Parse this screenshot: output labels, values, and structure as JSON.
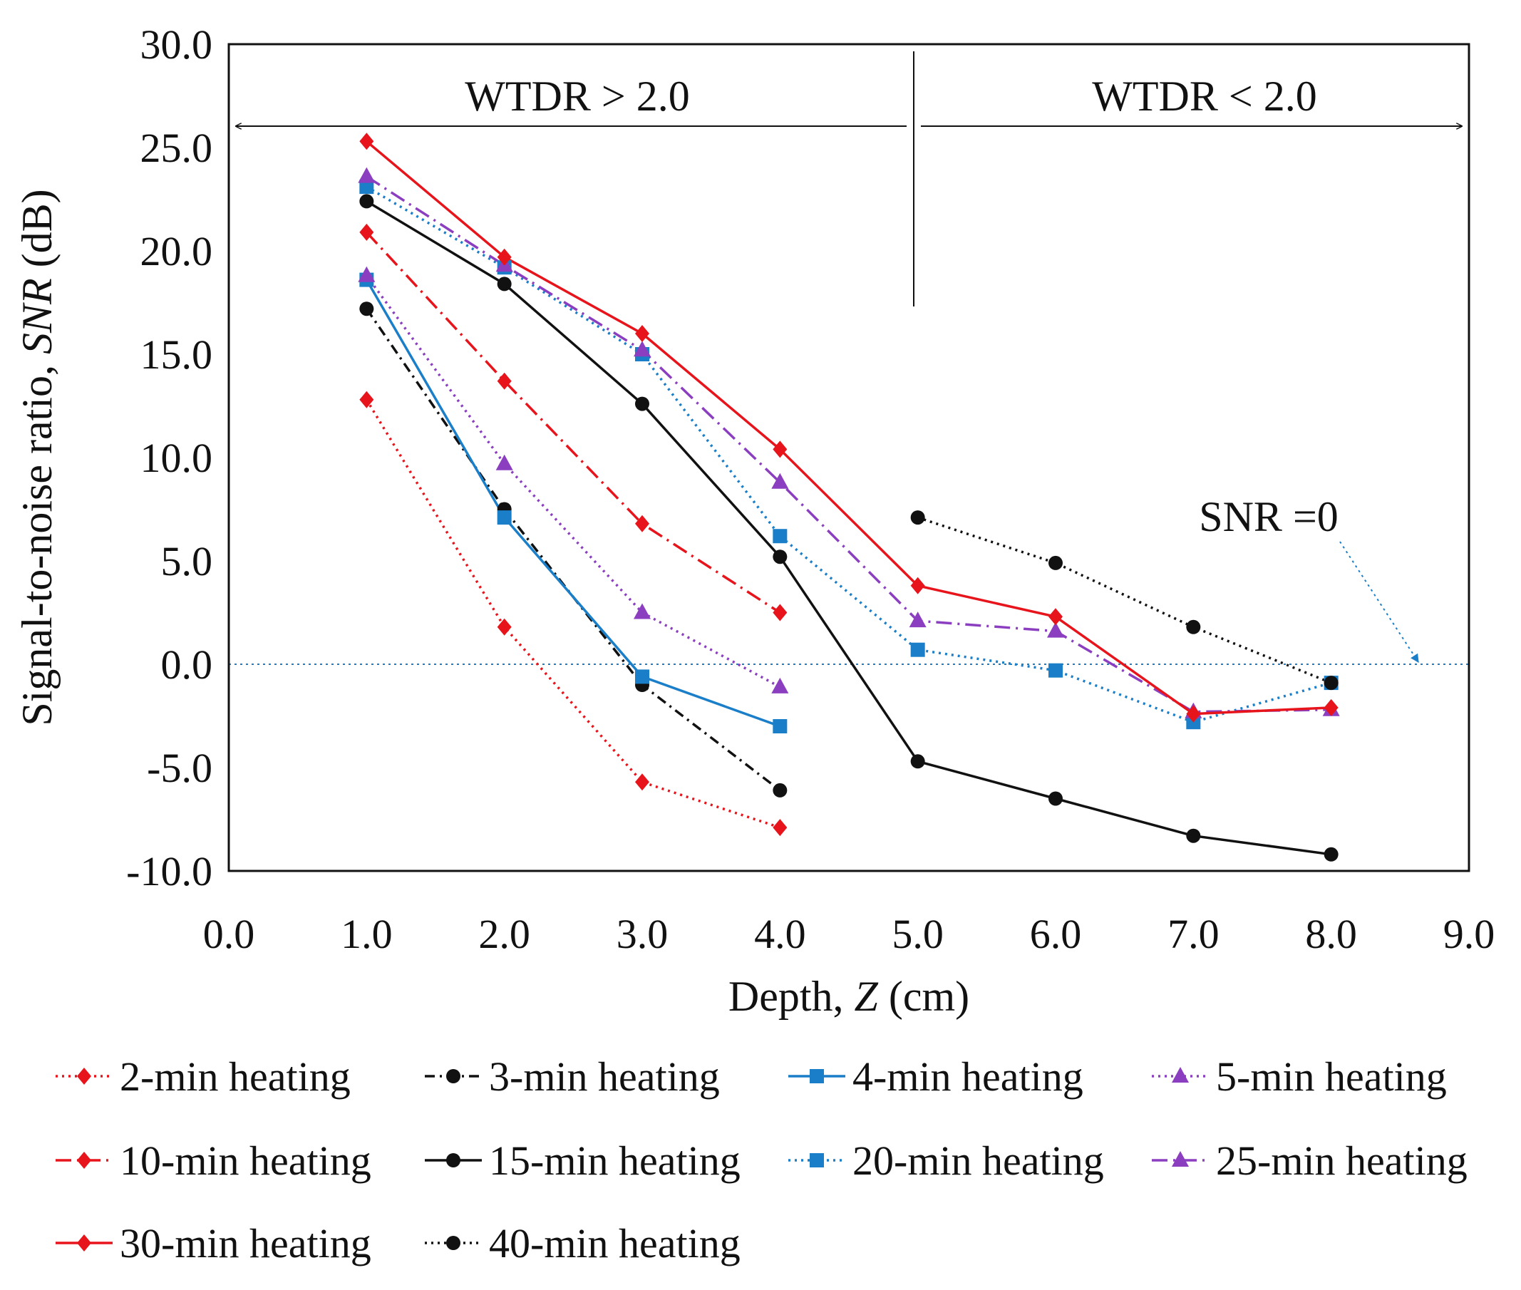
{
  "chart_data": {
    "type": "line",
    "xlabel_prefix": "Depth, ",
    "xlabel_var": "Z",
    "xlabel_suffix": " (cm)",
    "ylabel_prefix": "Signal-to-noise ratio, ",
    "ylabel_var": "SNR",
    "ylabel_suffix": " (dB)",
    "xlim": [
      0,
      9
    ],
    "ylim": [
      -10,
      30
    ],
    "x_ticks": [
      "0.0",
      "1.0",
      "2.0",
      "3.0",
      "4.0",
      "5.0",
      "6.0",
      "7.0",
      "8.0",
      "9.0"
    ],
    "y_ticks": [
      "-10.0",
      "-5.0",
      "0.0",
      "5.0",
      "10.0",
      "15.0",
      "20.0",
      "25.0",
      "30.0"
    ],
    "annotations": {
      "region_left": "WTDR > 2.0",
      "region_right": "WTDR < 2.0",
      "zero_line": "SNR =0"
    },
    "series": [
      {
        "name": "2-min heating",
        "color": "#e8141b",
        "dash": "3,6",
        "marker": "diamond",
        "x": [
          1,
          2,
          3,
          4
        ],
        "y": [
          12.8,
          1.8,
          -5.7,
          -7.9
        ]
      },
      {
        "name": "3-min heating",
        "color": "#111111",
        "dash": "14,7,3,7",
        "marker": "circle",
        "x": [
          1,
          2,
          3,
          4
        ],
        "y": [
          17.2,
          7.5,
          -1.0,
          -6.1
        ]
      },
      {
        "name": "4-min heating",
        "color": "#1a7fc8",
        "dash": "",
        "marker": "square",
        "x": [
          1,
          2,
          3,
          4
        ],
        "y": [
          18.6,
          7.1,
          -0.6,
          -3.0
        ]
      },
      {
        "name": "5-min heating",
        "color": "#8b3fc0",
        "dash": "3,6",
        "marker": "triangle",
        "x": [
          1,
          2,
          3,
          4
        ],
        "y": [
          18.8,
          9.7,
          2.5,
          -1.1
        ]
      },
      {
        "name": "10-min heating",
        "color": "#e8141b",
        "dash": "22,8,3,8",
        "marker": "diamond",
        "x": [
          1,
          2,
          3,
          4
        ],
        "y": [
          20.9,
          13.7,
          6.8,
          2.5
        ]
      },
      {
        "name": "15-min heating",
        "color": "#111111",
        "dash": "",
        "marker": "circle",
        "x": [
          1,
          2,
          3,
          4,
          5,
          6,
          7,
          8
        ],
        "y": [
          22.4,
          18.4,
          12.6,
          5.2,
          -4.7,
          -6.5,
          -8.3,
          -9.2
        ]
      },
      {
        "name": "20-min heating",
        "color": "#1a7fc8",
        "dash": "3,6",
        "marker": "square",
        "x": [
          1,
          2,
          3,
          4,
          5,
          6,
          7,
          8
        ],
        "y": [
          23.1,
          19.2,
          15.0,
          6.2,
          0.7,
          -0.3,
          -2.8,
          -0.9
        ]
      },
      {
        "name": "25-min heating",
        "color": "#8b3fc0",
        "dash": "22,8,3,8",
        "marker": "triangle",
        "x": [
          1,
          2,
          3,
          4,
          5,
          6,
          7,
          8
        ],
        "y": [
          23.6,
          19.3,
          15.2,
          8.8,
          2.1,
          1.6,
          -2.3,
          -2.2
        ]
      },
      {
        "name": "30-min heating",
        "color": "#e8141b",
        "dash": "",
        "marker": "diamond",
        "x": [
          1,
          2,
          3,
          4,
          5,
          6,
          7,
          8
        ],
        "y": [
          25.3,
          19.7,
          16.0,
          10.4,
          3.8,
          2.3,
          -2.4,
          -2.1
        ]
      },
      {
        "name": "40-min heating",
        "color": "#111111",
        "dash": "3,6",
        "marker": "circle",
        "x": [
          5,
          6,
          7,
          8
        ],
        "y": [
          7.1,
          4.9,
          1.8,
          -0.9
        ]
      }
    ]
  }
}
